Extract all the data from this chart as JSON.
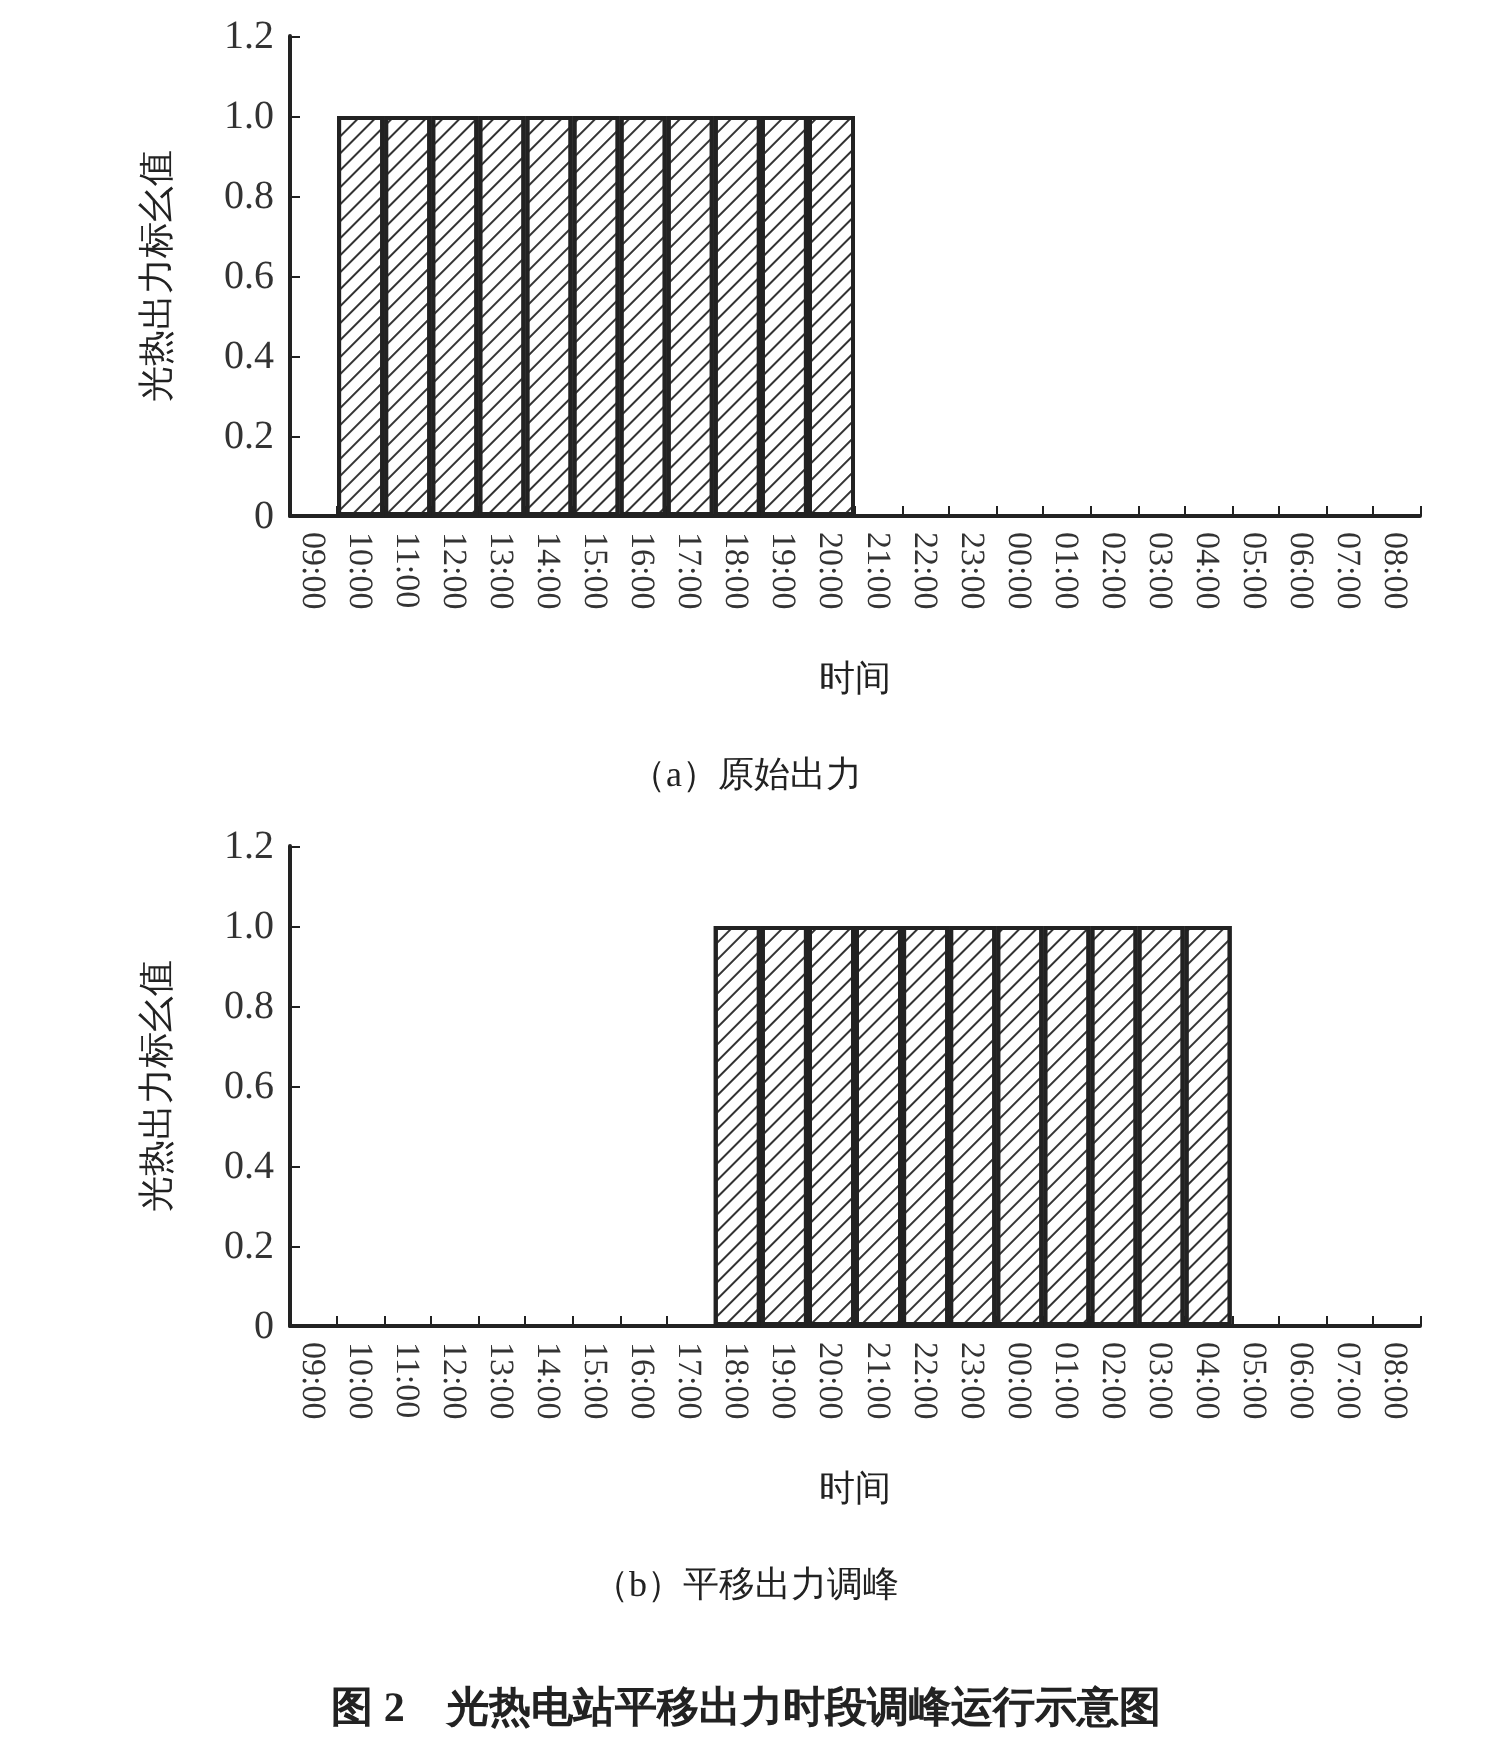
{
  "chart_data": [
    {
      "type": "bar",
      "subtitle": "（a）原始出力",
      "xlabel": "时间",
      "ylabel": "光热出力标幺值",
      "categories": [
        "09:00",
        "10:00",
        "11:00",
        "12:00",
        "13:00",
        "14:00",
        "15:00",
        "16:00",
        "17:00",
        "18:00",
        "19:00",
        "20:00",
        "21:00",
        "22:00",
        "23:00",
        "00:00",
        "01:00",
        "02:00",
        "03:00",
        "04:00",
        "05:00",
        "06:00",
        "07:00",
        "08:00"
      ],
      "values": [
        0,
        1,
        1,
        1,
        1,
        1,
        1,
        1,
        1,
        1,
        1,
        1,
        0,
        0,
        0,
        0,
        0,
        0,
        0,
        0,
        0,
        0,
        0,
        0
      ],
      "color": "#ffffff",
      "ylim": [
        0,
        1.2
      ],
      "yticks": [
        0,
        0.2,
        0.4,
        0.6,
        0.8,
        {
          "value": 1,
          "label": "1.0"
        },
        1.2
      ],
      "grid": false
    },
    {
      "type": "bar",
      "subtitle": "（b）平移出力调峰",
      "xlabel": "时间",
      "ylabel": "光热出力标幺值",
      "categories": [
        "09:00",
        "10:00",
        "11:00",
        "12:00",
        "13:00",
        "14:00",
        "15:00",
        "16:00",
        "17:00",
        "18:00",
        "19:00",
        "20:00",
        "21:00",
        "22:00",
        "23:00",
        "00:00",
        "01:00",
        "02:00",
        "03:00",
        "04:00",
        "05:00",
        "06:00",
        "07:00",
        "08:00"
      ],
      "values": [
        0,
        0,
        0,
        0,
        0,
        0,
        0,
        0,
        0,
        1,
        1,
        1,
        1,
        1,
        1,
        1,
        1,
        1,
        1,
        1,
        0,
        0,
        0,
        0
      ],
      "color": "#ffffff",
      "ylim": [
        0,
        1.2
      ],
      "yticks": [
        0,
        0.2,
        0.4,
        0.6,
        0.8,
        {
          "value": 1,
          "label": "1.0"
        },
        1.2
      ],
      "grid": false,
      "annotations": [
        "图 2　光热电站平移出力时段调峰运行示意图"
      ]
    }
  ]
}
